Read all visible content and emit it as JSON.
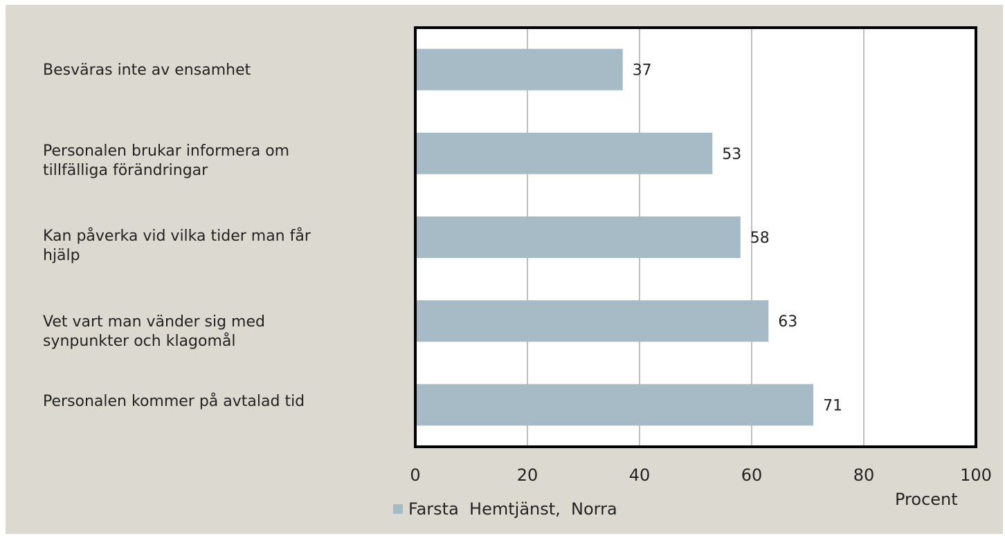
{
  "colors": {
    "background": "#dcdad0",
    "plot": "#ffffff",
    "bar": "#a6bbc6",
    "grid": "#808080",
    "axis": "#000000"
  },
  "chart_data": {
    "type": "bar",
    "orientation": "horizontal",
    "categories": [
      "Besväras inte av ensamhet",
      "Personalen brukar informera om\ntillfälliga förändringar",
      "Kan påverka vid vilka tider man får\nhjälp",
      "Vet vart man vänder sig med\nsynpunkter och klagomål",
      "Personalen kommer på avtalad tid"
    ],
    "series": [
      {
        "name": "Farsta  Hemtjänst,  Norra",
        "values": [
          37,
          53,
          58,
          63,
          71
        ]
      }
    ],
    "data_labels": [
      "37",
      "53",
      "58",
      "63",
      "71"
    ],
    "xlabel": "Procent",
    "xlim": [
      0,
      100
    ],
    "xticks": [
      "0",
      "20",
      "40",
      "60",
      "80",
      "100"
    ],
    "grid": "vertical",
    "legend_position": "bottom-left"
  }
}
